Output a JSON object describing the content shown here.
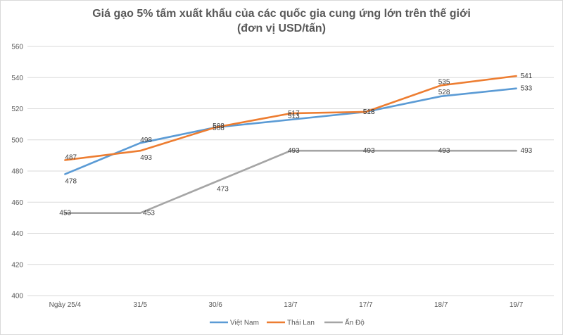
{
  "chart_data": {
    "type": "line",
    "title": "Giá gạo 5% tấm xuất khẩu của các quốc gia cung ứng lớn trên thế giới",
    "subtitle": "(đơn vị USD/tấn)",
    "categories": [
      "Ngày 25/4",
      "31/5",
      "30/6",
      "13/7",
      "17/7",
      "18/7",
      "19/7"
    ],
    "ylim": [
      400,
      560
    ],
    "yticks": [
      400,
      420,
      440,
      460,
      480,
      500,
      520,
      540,
      560
    ],
    "grid": true,
    "legend_position": "bottom",
    "series": [
      {
        "name": "Việt Nam",
        "color": "#5b9bd5",
        "values": [
          478,
          498,
          508,
          513,
          518,
          528,
          533
        ]
      },
      {
        "name": "Thái Lan",
        "color": "#ed7d31",
        "values": [
          487,
          493,
          508,
          517,
          518,
          535,
          541
        ]
      },
      {
        "name": "Ấn Độ",
        "color": "#a5a5a5",
        "values": [
          453,
          453,
          473,
          493,
          493,
          493,
          493
        ]
      }
    ]
  }
}
